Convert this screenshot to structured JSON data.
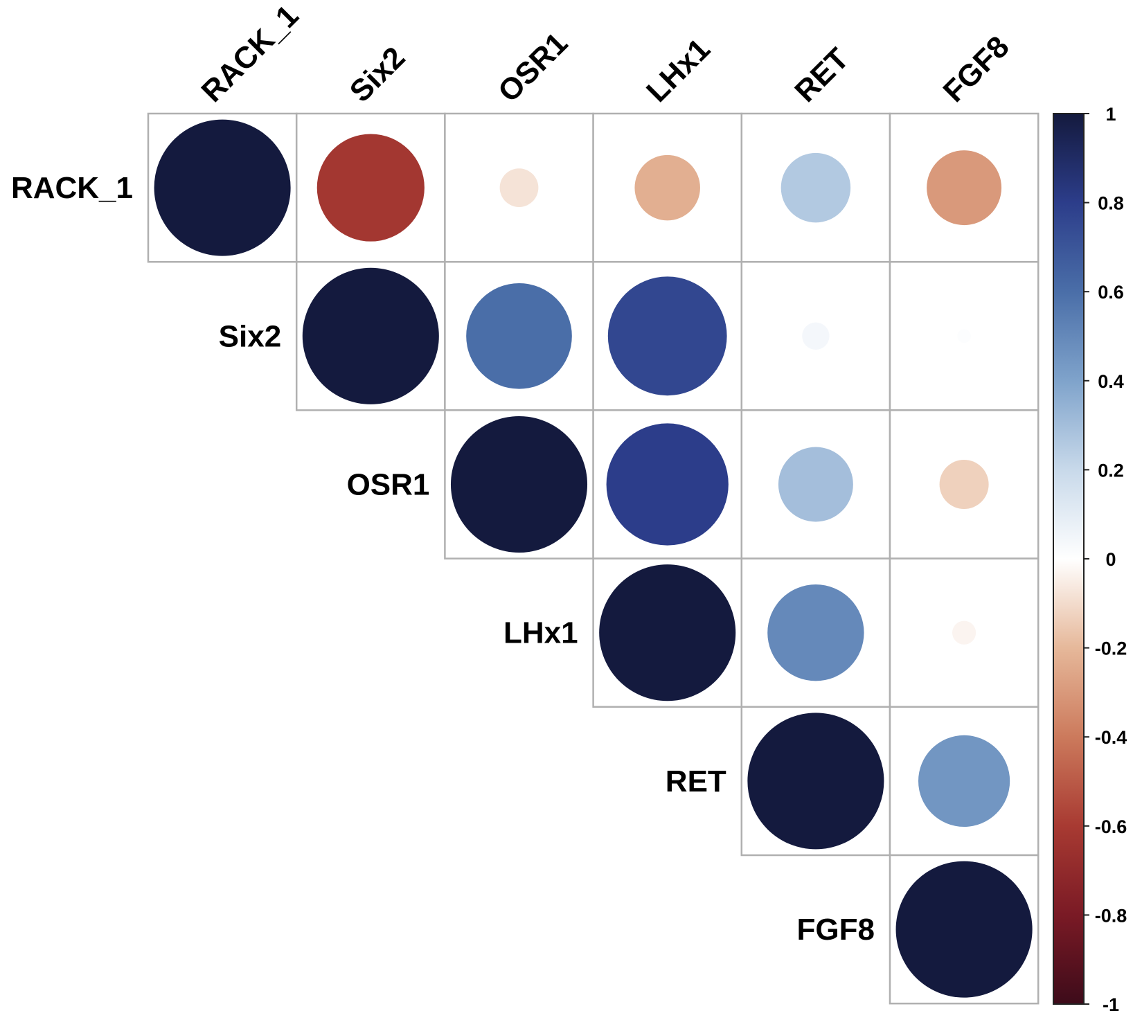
{
  "chart_data": {
    "type": "heatmap",
    "subtype": "correlation-circle-upper",
    "title": "",
    "variables": [
      "RACK_1",
      "Six2",
      "OSR1",
      "LHx1",
      "RET",
      "FGF8"
    ],
    "matrix": [
      [
        1,
        -0.62,
        -0.08,
        -0.23,
        0.26,
        -0.3
      ],
      [
        null,
        1,
        0.6,
        0.76,
        0.04,
        0.01
      ],
      [
        null,
        null,
        1,
        0.8,
        0.3,
        -0.13
      ],
      [
        null,
        null,
        null,
        1,
        0.5,
        -0.03
      ],
      [
        null,
        null,
        null,
        null,
        1,
        0.45
      ],
      [
        null,
        null,
        null,
        null,
        null,
        1
      ]
    ],
    "colorbar": {
      "range": [
        -1,
        1
      ],
      "ticks": [
        "1",
        "0.8",
        "0.6",
        "0.4",
        "0.2",
        "0",
        "-0.2",
        "-0.4",
        "-0.6",
        "-0.8",
        "-1"
      ],
      "tick_values": [
        1,
        0.8,
        0.6,
        0.4,
        0.2,
        0,
        -0.2,
        -0.4,
        -0.6,
        -0.8,
        -1
      ],
      "colors": [
        "#3d0b1a",
        "#7a1a25",
        "#a83a32",
        "#cc7a5c",
        "#e6b89a",
        "#ffffff",
        "#c8d9ea",
        "#7fa3cb",
        "#4a6ea8",
        "#2c3d8a",
        "#141a3e"
      ],
      "placement": "right"
    },
    "grid": true
  }
}
